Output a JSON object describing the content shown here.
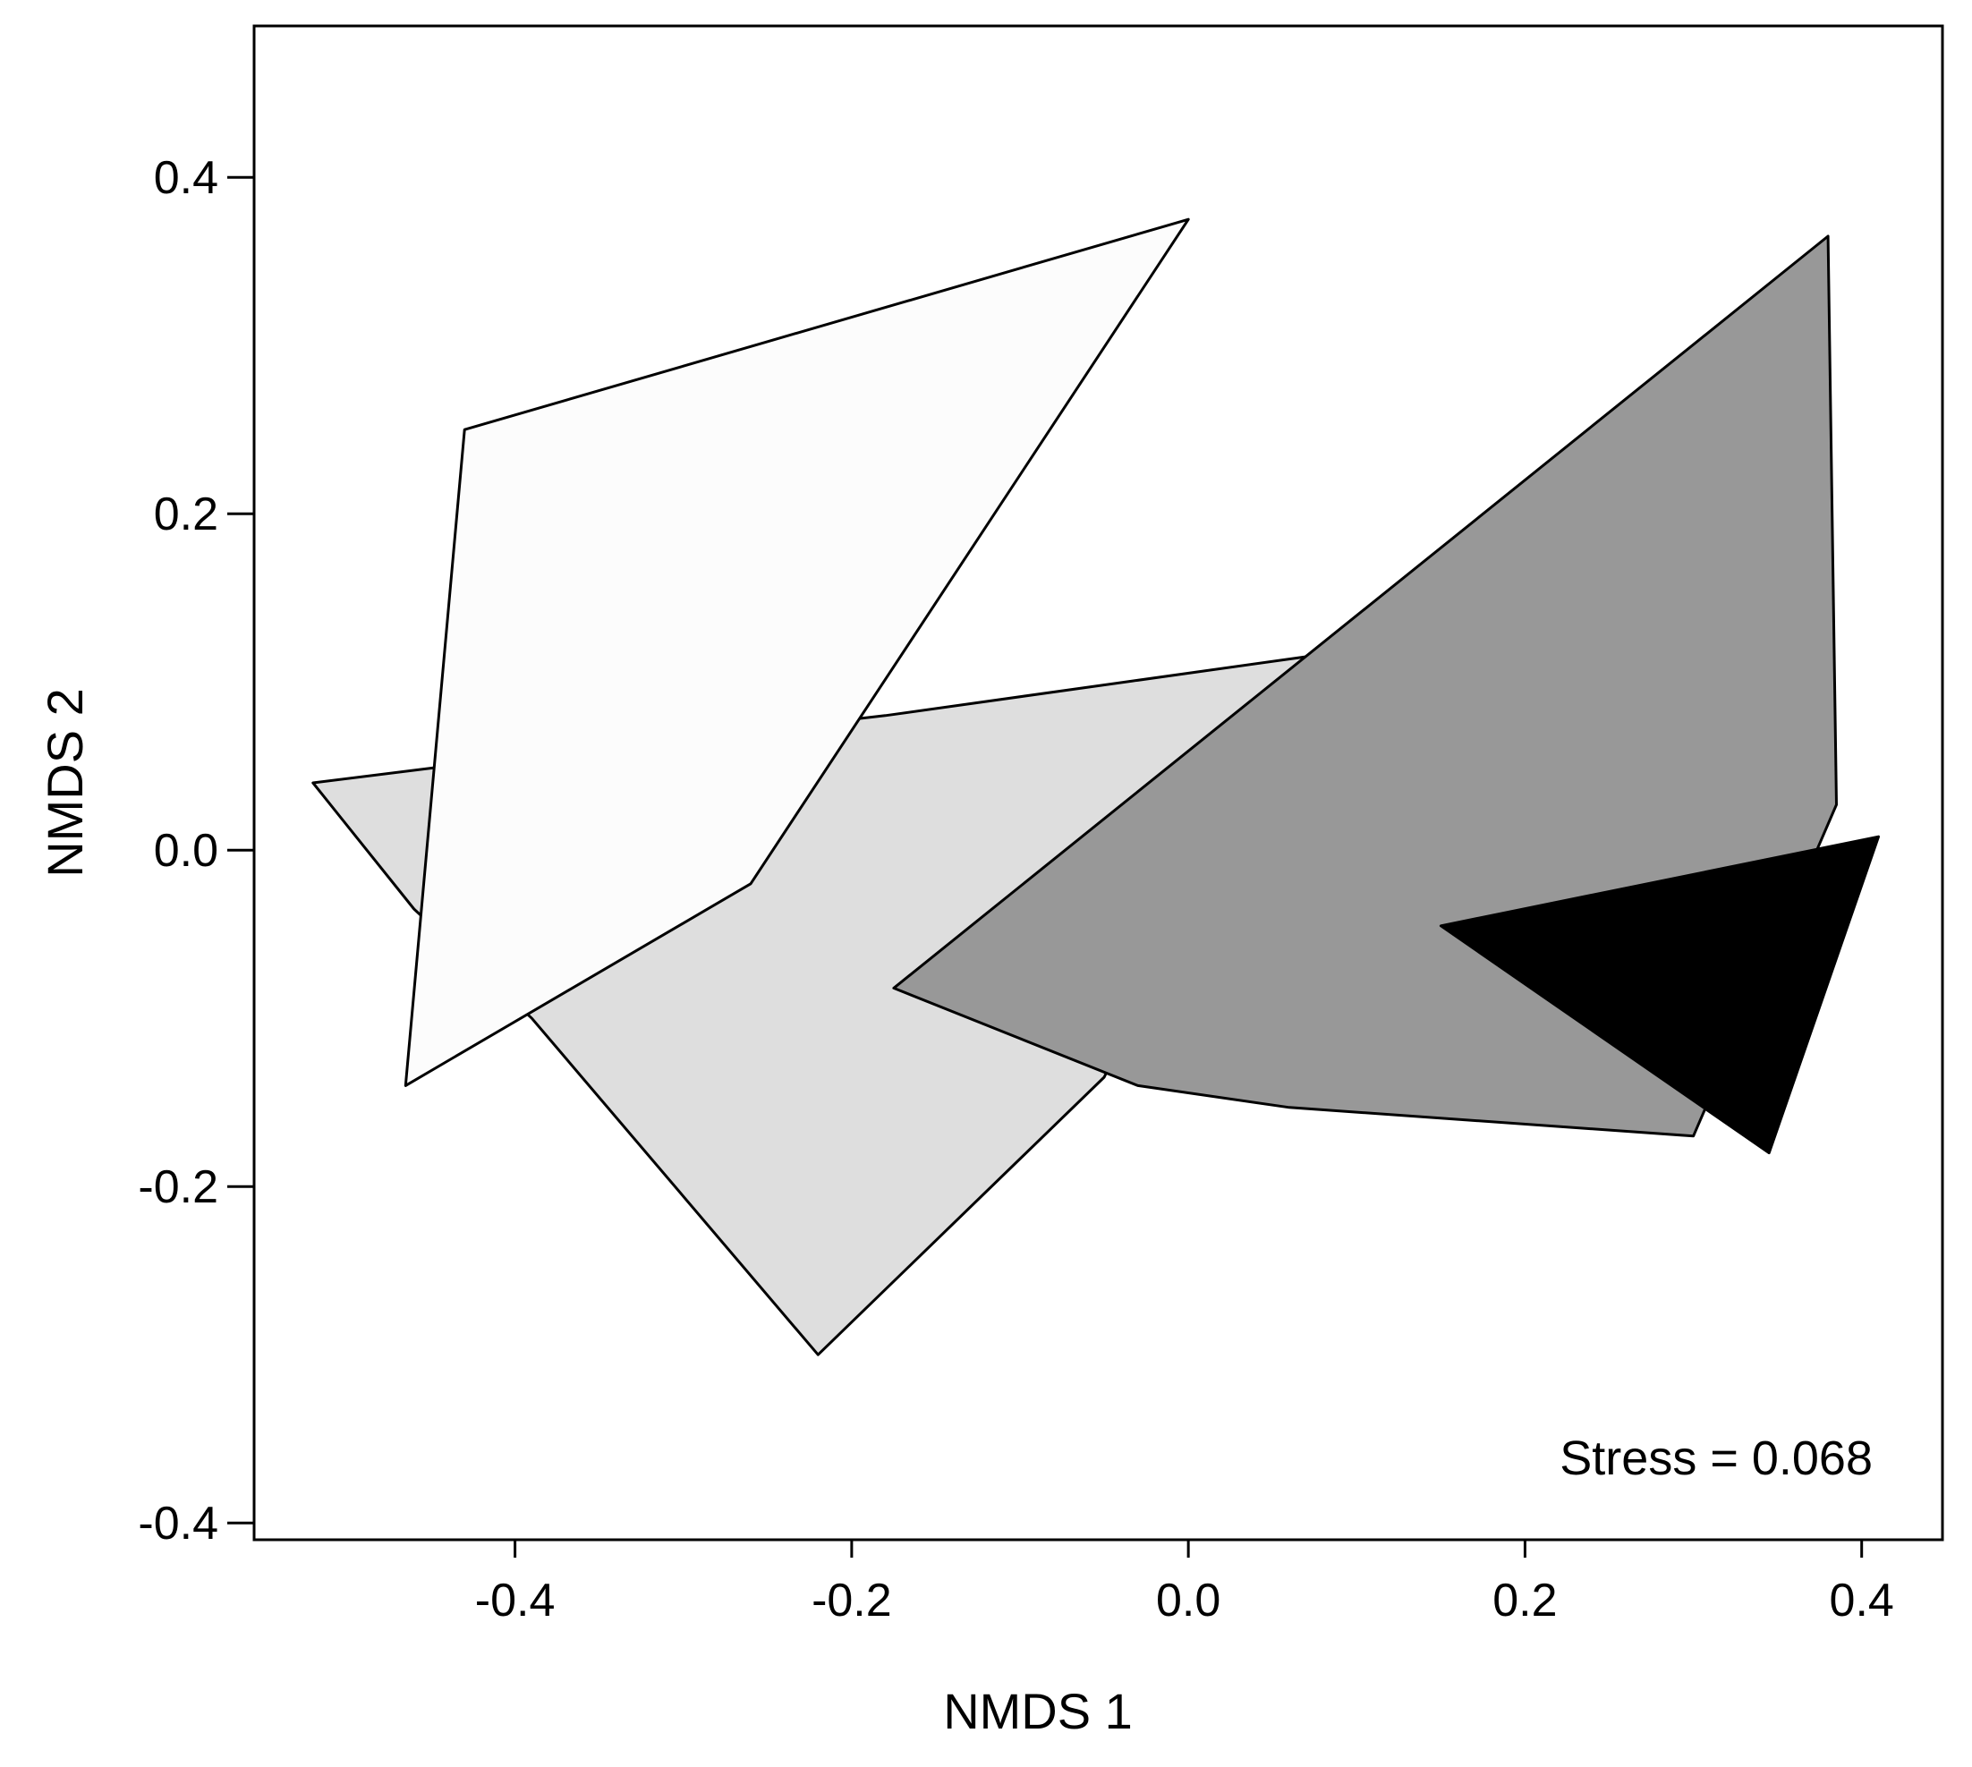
{
  "chart_data": {
    "type": "scatter",
    "subtype": "convex-hull polygons (NMDS ordination)",
    "title": "",
    "xlabel": "NMDS 1",
    "ylabel": "NMDS 2",
    "xlim": [
      -0.555,
      0.448
    ],
    "ylim": [
      -0.41,
      0.49
    ],
    "xticks": [
      -0.4,
      -0.2,
      0.0,
      0.2,
      0.4
    ],
    "xtick_labels": [
      "-0.4",
      "-0.2",
      "0.0",
      "0.2",
      "0.4"
    ],
    "yticks": [
      -0.4,
      -0.2,
      0.0,
      0.2,
      0.4
    ],
    "ytick_labels": [
      "-0.4",
      "-0.2",
      "0.0",
      "0.2",
      "0.4"
    ],
    "grid": false,
    "legend": "none",
    "annotation": "Stress = 0.068",
    "series": [
      {
        "fill": "#dedede",
        "points": [
          [
            -0.52,
            0.04
          ],
          [
            -0.44,
            0.05
          ],
          [
            -0.18,
            0.08
          ],
          [
            0.07,
            0.115
          ],
          [
            -0.05,
            -0.135
          ],
          [
            -0.22,
            -0.3
          ],
          [
            -0.39,
            -0.1
          ],
          [
            -0.46,
            -0.035
          ]
        ]
      },
      {
        "fill": "#fcfcfc",
        "points": [
          [
            -0.43,
            0.25
          ],
          [
            0.0,
            0.375
          ],
          [
            -0.26,
            -0.02
          ],
          [
            -0.465,
            -0.14
          ]
        ]
      },
      {
        "fill": "#989898",
        "points": [
          [
            0.38,
            0.365
          ],
          [
            0.385,
            0.027
          ],
          [
            0.3,
            -0.17
          ],
          [
            0.06,
            -0.153
          ],
          [
            -0.03,
            -0.14
          ],
          [
            -0.175,
            -0.082
          ]
        ]
      },
      {
        "fill": "#000000",
        "points": [
          [
            0.15,
            -0.045
          ],
          [
            0.41,
            0.008
          ],
          [
            0.345,
            -0.18
          ]
        ]
      }
    ]
  }
}
